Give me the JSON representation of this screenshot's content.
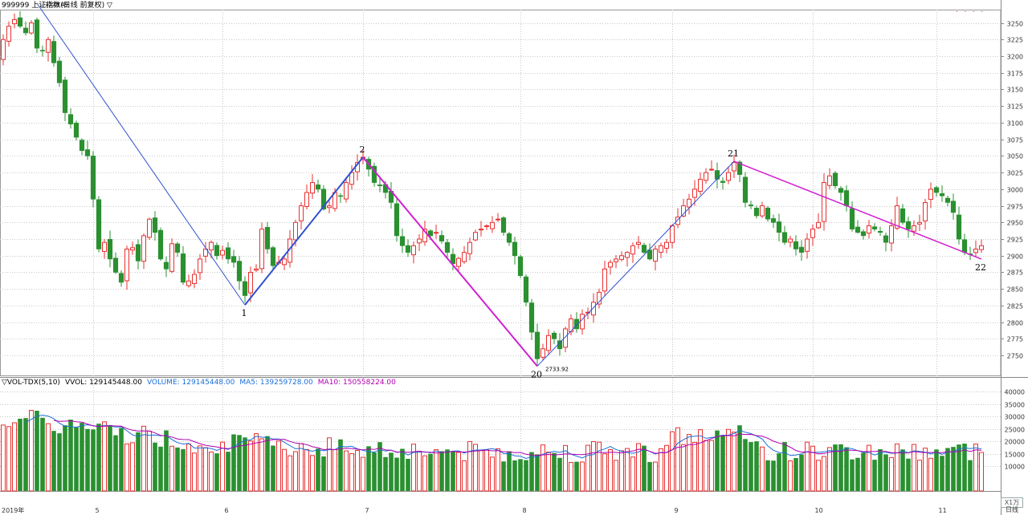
{
  "header": {
    "title": "999999 上证指数(日线 前复权) ▽",
    "dots": "· · · ·"
  },
  "vol_legend": {
    "name": "▽VOL-TDX(5,10)",
    "vvol": "VVOL: 129145448.00",
    "volume": "VOLUME: 129145448.00",
    "ma5": "MA5: 139259728.00",
    "ma10": "MA10: 150558224.00"
  },
  "unit_tag": "X1万",
  "period_tag": "日线",
  "colors": {
    "up": "#e83030",
    "down": "#2a9030",
    "wave": "#3050d0",
    "wave_alt": "#d020d0",
    "ma5": "#1a6fd8",
    "ma10": "#b000b0",
    "grid": "#c8c8c8"
  },
  "chart_data": {
    "type": "candlestick",
    "price_axis": {
      "min": 2720,
      "max": 3270,
      "ticks": [
        2750,
        2775,
        2800,
        2825,
        2850,
        2875,
        2900,
        2925,
        2950,
        2975,
        3000,
        3025,
        3050,
        3075,
        3100,
        3125,
        3150,
        3175,
        3200,
        3225,
        3250
      ]
    },
    "volume_axis": {
      "min": 0,
      "max": 42000,
      "ticks": [
        10000,
        15000,
        20000,
        25000,
        30000,
        35000,
        40000
      ]
    },
    "month_labels": [
      {
        "index": 0,
        "label": "2019年"
      },
      {
        "index": 16,
        "label": "5"
      },
      {
        "index": 39,
        "label": "6"
      },
      {
        "index": 64,
        "label": "7"
      },
      {
        "index": 92,
        "label": "8"
      },
      {
        "index": 119,
        "label": "9"
      },
      {
        "index": 144,
        "label": "10"
      },
      {
        "index": 166,
        "label": "11"
      }
    ],
    "high_label": "3279.49",
    "low_label": "2733.92",
    "wave_points": [
      {
        "label": "0",
        "index": 6,
        "price": 3279.49
      },
      {
        "label": "1",
        "index": 43,
        "price": 2826
      },
      {
        "label": "2",
        "index": 64,
        "price": 3048
      },
      {
        "label": "20",
        "index": 95,
        "price": 2733.92
      },
      {
        "label": "21",
        "index": 130,
        "price": 3042
      },
      {
        "label": "22",
        "index": 174,
        "price": 2895
      }
    ],
    "close": [
      3225,
      3245,
      3255,
      3245,
      3235,
      3250,
      3212,
      3208,
      3225,
      3190,
      3160,
      3115,
      3098,
      3078,
      3058,
      3050,
      2985,
      2910,
      2920,
      2895,
      2875,
      2860,
      2910,
      2912,
      2892,
      2930,
      2955,
      2935,
      2895,
      2880,
      2918,
      2905,
      2860,
      2862,
      2872,
      2895,
      2910,
      2920,
      2900,
      2908,
      2895,
      2890,
      2862,
      2840,
      2875,
      2880,
      2940,
      2910,
      2885,
      2890,
      2895,
      2925,
      2950,
      2975,
      2995,
      3010,
      3000,
      2970,
      2975,
      2995,
      2990,
      3010,
      3025,
      3040,
      3048,
      3030,
      3010,
      3005,
      2995,
      2980,
      2930,
      2915,
      2905,
      2915,
      2925,
      2940,
      2930,
      2935,
      2922,
      2905,
      2888,
      2896,
      2905,
      2920,
      2935,
      2940,
      2945,
      2950,
      2955,
      2935,
      2920,
      2900,
      2870,
      2830,
      2785,
      2745,
      2760,
      2780,
      2775,
      2760,
      2790,
      2805,
      2790,
      2812,
      2815,
      2830,
      2845,
      2880,
      2890,
      2895,
      2900,
      2905,
      2915,
      2920,
      2905,
      2895,
      2910,
      2915,
      2920,
      2945,
      2958,
      2975,
      2985,
      3000,
      3015,
      3025,
      3030,
      3015,
      3010,
      3025,
      3040,
      3022,
      2980,
      2975,
      2960,
      2975,
      2955,
      2950,
      2935,
      2920,
      2925,
      2910,
      2905,
      2925,
      2940,
      2950,
      3010,
      3020,
      3005,
      2995,
      2975,
      2940,
      2935,
      2930,
      2945,
      2940,
      2935,
      2920,
      2945,
      2975,
      2950,
      2940,
      2945,
      2950,
      2980,
      3000,
      2995,
      2990,
      2980,
      2965,
      2925,
      2905,
      2902,
      2910,
      2915
    ]
  }
}
